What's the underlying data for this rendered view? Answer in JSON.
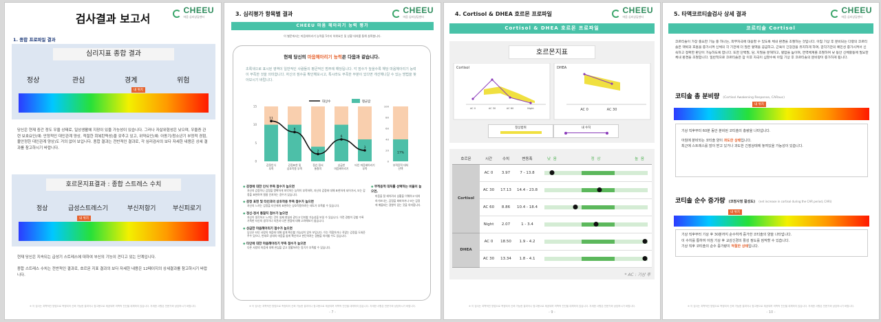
{
  "brand": {
    "name": "CHEEU",
    "sub": "마음 심리상담센터"
  },
  "footer_note": "※ 이 검사는 과학적인 방법으로 측정되어 신뢰 가능한 결과이나 참고용으로 제공되며 의학적 진단을 대체하지 않습니다. 자세한 사항은 전문가와 상담하시기 바랍니다.",
  "page6": {
    "title": "검사결과 보고서",
    "section": "1. 종합 프로파일 결과",
    "box1": {
      "title": "심리지표 종합 결과",
      "labels": [
        "정상",
        "관심",
        "경계",
        "위험"
      ],
      "marker": "내 위치",
      "marker_pct": 0.56
    },
    "text1": "당신은 현재 중간 정도 우울 상태로, 일상생활에 지장이 있을 가능성이 있습니다. 그러나 자살위험성은 낮으며, 우울증 관련 보호요인(예: 안정적인 대인관계 양상, 적절한 회복탄력성)을 갖추고 있고, 위약요인(예: 아동기/청소년기 부정적 경험, 불안정한 대인관계 양상)도 거의 없어 보입니다. 종합 결과는 전반적인 결과로, 각 심리검사의 보다 자세한 내용은 상세 결과를 참고하시기 바랍니다.",
    "box2": {
      "title": "호르몬지표결과 : 종합 스트레스 수치",
      "labels": [
        "정상",
        "급성스트레스기",
        "부신저항기",
        "부신피로기"
      ],
      "marker": "내 위치",
      "marker_pct": 0.32
    },
    "text2a": "현재 당신은 지속되는 급성기 스트레스에 대하여 부신의 기능이 견디고 있는 단계입니다.",
    "text2b": "종합 스트레스 수치는 전반적인 결과로, 호르몬 지표 결과의 보다 자세한 내용은 12페이지의 상세결과를 참고하시기 바랍니다."
  },
  "page7": {
    "section": "3. 심리평가 항목별 결과",
    "banner": "CHEEU 마음 헤아리기 능력 평가",
    "subline": "이 별문에서는 마음헤아리기 능력을 5가지 하위요인 및 상황 대처를 통해 살펴봅니다.",
    "card_title_pre": "현재 당신의 ",
    "card_title_hl": "마음헤아리기 능력",
    "card_title_post": "은 다음과 같습니다.",
    "card_text": "초록색으로 표시된 영역이 일반적인 사람들의 평균적인 범주에 해당됩니다. 각 점수가 높을수록 해당 마음헤아리기 능력이 부족한 것을 의미합니다. 자신의 점수를 확인해보시고, 특시라도 부족한 부분이 있다면 개선해나갈 수 있는 방법을 찾아보시기 바랍니다.",
    "legend": {
      "line": "대상수",
      "bar": "평균값"
    },
    "bullets": [
      {
        "h": "감정에 대한 인식 부족 점수가 높으면",
        "t": "자신의 감정이나 감정을 명확하게 파악하는 능력이 부족하며, 자신의 감정에 대해 표현하게 되어가서, 또는 감정을 표현하여 필름 인지하는 경우가 있습니다."
      },
      {
        "h": "감정 표현 및 타인과의 상호작용 부족 점수가 높으면",
        "t": "자신의 느끼는 감정을 타인에게 표현하는 상호작용하려는 태도가 부족할 수 있습니다."
      },
      {
        "h": "정신·정서 통찰치 점수가 높으면",
        "t": "자신이 생각하고 느끼는 것이 실제 현실과 같다고 인지할 가능성을 보일 수 있습니다. 이런 경향이 강할 수록 가족한 자신의 생각이나 의견과 다른 관점에 대해 고려해보기 쉽습니다."
      },
      {
        "h": "상급한 마음헤아리기 점수가 높으면",
        "t": "당신은 타인 사람의 마음에 대해 쉽게 확신할 가능성이 있어 보입니다. 이는 적합하거나 꼭맞는 감정을 도와준 주수 있으나, 반대로 상대의 마음을 쉽게 확신하고 판단하려는 경향을 의미할 수도 있습니다."
      },
      {
        "h": "타인에 대한 마음헤아리기 부족 점수가 높으면",
        "t": "다른 사람의 마음에 대해 관심을 갖고 생활하려는 동기가 부족할 수 있습니다."
      }
    ],
    "side_note_h": "부적응적 대처를 선택하는 비율이 높으면,",
    "side_note_t": "마음을 잘 헤아려서 상황을 이해하고 대처하기보다는, 감정을 회피하거나 또는 감정에 매몰되는 경향이 있는 것을 의미합니다.",
    "page_no": "- 7 -"
  },
  "chart_data": {
    "type": "bar",
    "categories": [
      "감정인식 부족",
      "감정표현 및 상호작용 부족",
      "정신·정서 통찰치",
      "상급한 마음헤아리기",
      "타인 마음헤아리기 부족"
    ],
    "series": [
      {
        "name": "평균값",
        "values": [
          10,
          10,
          4,
          10,
          6
        ]
      },
      {
        "name": "대상수",
        "values": [
          11,
          8,
          2,
          6,
          3
        ]
      }
    ],
    "side_bar": {
      "category": "부적응적 대처 선택",
      "value_pct": 17
    },
    "ylim": [
      0,
      15
    ],
    "yticks": [
      0,
      5,
      10,
      15
    ],
    "side_yticks": [
      0,
      20,
      40,
      60,
      80,
      100
    ]
  },
  "page8": {
    "section": "4. Cortisol & DHEA 호르몬 프로파일",
    "banner": "Cortisol & DHEA 호르몬 프로파일",
    "chart_title": "호르몬지표",
    "cortisol_label": "Cortisol",
    "dhea_label": "DHEA",
    "legend": {
      "range": "정상범위",
      "mine": "내 수치"
    },
    "columns": [
      "호르몬",
      "시간",
      "수치",
      "변동폭"
    ],
    "scale": [
      "낮 음",
      "정 상",
      "높 음"
    ],
    "rows": [
      {
        "hormone": "Cortisol",
        "time": "AC 0",
        "value": "3.97",
        "range": "7 - 13.8",
        "level": 0.07
      },
      {
        "hormone": "",
        "time": "AC 30",
        "value": "17.13",
        "range": "14.4 - 23.8",
        "level": 0.53
      },
      {
        "hormone": "",
        "time": "AC 60",
        "value": "8.86",
        "range": "10.4 - 18.4",
        "level": 0.3
      },
      {
        "hormone": "",
        "time": "Night",
        "value": "2.07",
        "range": "1 - 3.4",
        "level": 0.5
      },
      {
        "hormone": "DHEA",
        "time": "AC 0",
        "value": "18.50",
        "range": "1.9 - 4.2",
        "level": 0.97
      },
      {
        "hormone": "",
        "time": "AC 30",
        "value": "13.34",
        "range": "1.8 - 4.1",
        "level": 0.97
      }
    ],
    "note": "* AC : 기상 후",
    "page_no": "- 9 -"
  },
  "page9": {
    "section": "5. 타액코르티솔검사 상세 결과",
    "banner": "코르티솔 Cortisol",
    "intro": "코르티솔이 가장 중요한 기능 중 하나는, 외부자극에 대응할 수 있도록 체내 환경을 조절하는 것입니다. 아침 기상 후 분비되는 다량의 코르티솔은 맥박과 호흡을 증가시켜 신체의 각 기관에 더 많은 혈액을 공급하고, 근육이 긴장감을 유지하게 하며, 감각기관의 예민성 증가시켜서 신속하고 정확한 판단이 가능하도록 합니다. 또한 단백질, 당, 지질을 분해하고, 혈압을 높이며, 면역체계를 조절하여 낮 동안 신체활동에 필요한 체내 환경을 조절합니다. 일반적으로 코르티솔은 잠 이후 자극이 심할수록 아침 기상 후 코르티솔의 분비량이 증가하게 됩니다.",
    "h1": "코티솔 총 분비량",
    "h1_sub": "(Cortisol Awakening Response, CARauc)",
    "marker": "내 위치",
    "marker1_pct": 0.52,
    "box1": [
      {
        "pre": "기상 직후부터 60분 동안 분비된 코티솔의 총량을 나타냅니다.",
        "hl": "",
        "post": ""
      },
      {
        "pre": "아침에 분비되는 코티솔 양이 ",
        "hl": "과도한 상태",
        "post": "입니다."
      },
      {
        "pre": "최근에 스트레스를 많이 받고 있거나 과도한 긴장상태에 놓여있을 가능성이 있습니다.",
        "hl": "",
        "post": ""
      }
    ],
    "h2": "코티솔 순수 증가량",
    "h2_sub2": "(코정사정 활성도)",
    "h2_sub": "(net increase in cortisol during the CAR period, CARi)",
    "marker2_pct": 0.36,
    "box2": [
      {
        "pre": "기상 직후부터 기상 후 30분까지 순수하게 증가한 코티솔의 양을 나타냅니다.",
        "hl": "",
        "post": ""
      },
      {
        "pre": "이 수치를 통하여 아침 기상 후 교감신경의 활성 정도를 짐작할 수 있습니다.",
        "hl": "",
        "post": ""
      },
      {
        "pre": "기상 직후 코티솔의 순수 증가량이 ",
        "hl": "적절한 상태",
        "post": "입니다."
      }
    ],
    "page_no": "- 10 -"
  }
}
